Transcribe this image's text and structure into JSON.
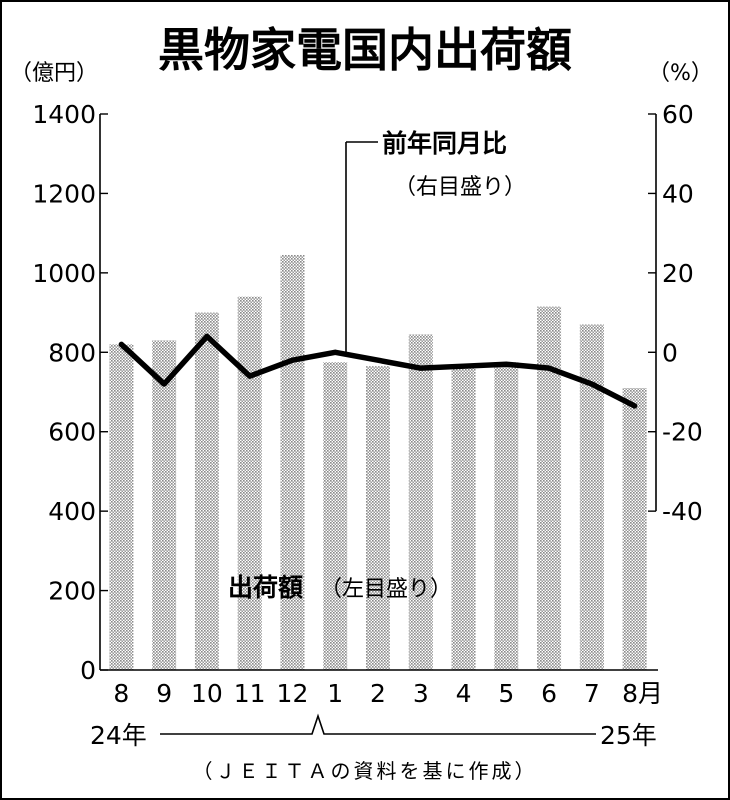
{
  "chart_data": {
    "type": "bar",
    "title": "黒物家電国内出荷額",
    "left_unit": "（億円）",
    "right_unit": "（%）",
    "categories": [
      "8",
      "9",
      "10",
      "11",
      "12",
      "1",
      "2",
      "3",
      "4",
      "5",
      "6",
      "7",
      "8月"
    ],
    "year_labels": {
      "start": "24年",
      "end": "25年"
    },
    "series": [
      {
        "name": "出荷額",
        "name_note": "（左目盛り）",
        "type": "bar",
        "axis": "left",
        "values": [
          820,
          830,
          900,
          940,
          1045,
          775,
          765,
          845,
          760,
          775,
          915,
          870,
          710
        ]
      },
      {
        "name": "前年同月比",
        "name_note": "（右目盛り）",
        "type": "line",
        "axis": "right",
        "values": [
          2,
          -8,
          4,
          -6,
          -2,
          0,
          -2,
          -4,
          -3.5,
          -3,
          -4,
          -8,
          -13.5
        ]
      }
    ],
    "left_axis": {
      "ylim": [
        0,
        1400
      ],
      "ticks": [
        "0",
        "200",
        "400",
        "600",
        "800",
        "1000",
        "1200",
        "1400"
      ]
    },
    "right_axis": {
      "ylim": [
        -40,
        60
      ],
      "ticks": [
        "-40",
        "-20",
        "0",
        "20",
        "40",
        "60"
      ]
    },
    "source": "（ＪＥＩＴＡの資料を基に作成）"
  }
}
